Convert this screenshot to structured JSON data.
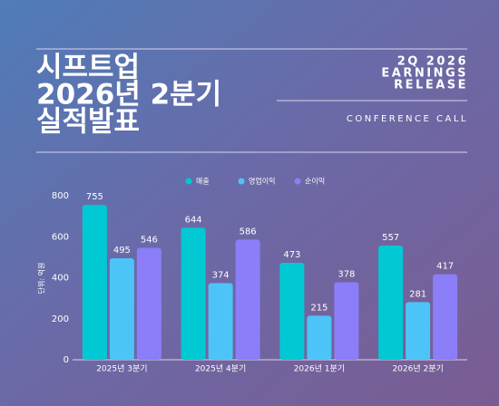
{
  "chart_data": {
    "type": "bar",
    "title": [
      "시프트업",
      "2026년 2분기",
      "실적발표"
    ],
    "subtitle": [
      "2Q 2026",
      "EARNINGS",
      "RELEASE"
    ],
    "annotation": "CONFERENCE CALL",
    "y_label": "단위: 억원",
    "categories": [
      "2025년 3분기",
      "2025년 4분기",
      "2026년 1분기",
      "2026년 2분기"
    ],
    "series": [
      {
        "name": "매출",
        "color": "#00c9d4",
        "values": [
          755,
          644,
          473,
          557
        ]
      },
      {
        "name": "영업이익",
        "color": "#4cc4f8",
        "values": [
          495,
          374,
          215,
          281
        ]
      },
      {
        "name": "순이익",
        "color": "#8b7ef8",
        "values": [
          546,
          586,
          378,
          417
        ]
      }
    ],
    "ylim": [
      0,
      800
    ],
    "yticks": [
      0,
      200,
      400,
      600,
      800
    ]
  }
}
